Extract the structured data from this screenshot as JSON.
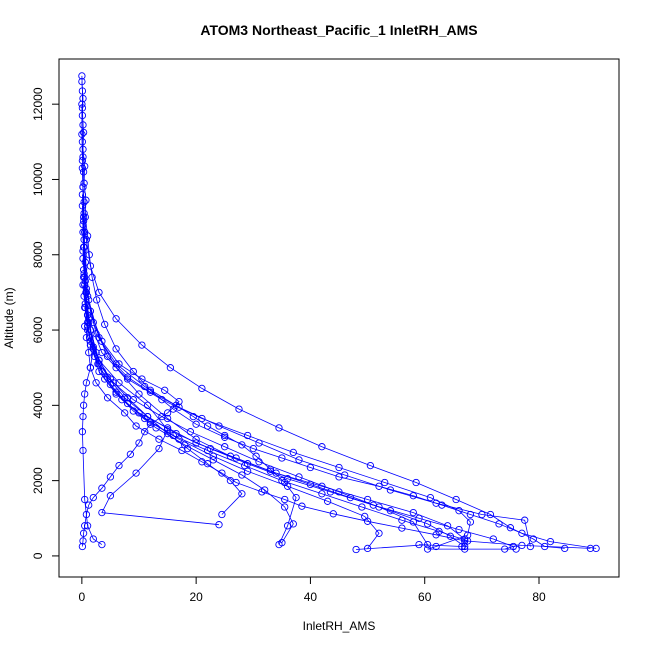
{
  "chart_data": {
    "type": "line",
    "title": "ATOM3 Northeast_Pacific_1 InletRH_AMS",
    "xlabel": "InletRH_AMS",
    "ylabel": "Altitude (m)",
    "xlim": [
      -4,
      94
    ],
    "ylim": [
      -560,
      13200
    ],
    "xticks": [
      0,
      20,
      40,
      60,
      80
    ],
    "yticks": [
      0,
      2000,
      4000,
      6000,
      8000,
      10000,
      12000
    ],
    "grid": false,
    "legend": "none",
    "series_color": "#0000ff",
    "marker": "open-circle",
    "series": [
      {
        "x": [
          0,
          0.1,
          0.1,
          0.2,
          0.1,
          0.2,
          0.3,
          0.2,
          0.4,
          0.3,
          0.5,
          0.4,
          0.6,
          0.5,
          0.8,
          0.6,
          1.0,
          0.8,
          1.2,
          1.5,
          2.5,
          4.5,
          7.5,
          9.5,
          13.5,
          17.5,
          21.0,
          24.5,
          27.0,
          31.5,
          35.5,
          38.5,
          44.0,
          50.0,
          56.0,
          62.0,
          67.0,
          77.0,
          89.0
        ],
        "y": [
          12750,
          12350,
          11900,
          11450,
          11000,
          10600,
          10200,
          9800,
          9400,
          9000,
          8600,
          8200,
          7800,
          7400,
          7000,
          6600,
          6200,
          5800,
          5400,
          5000,
          4600,
          4200,
          3800,
          3450,
          3100,
          2800,
          2500,
          2200,
          1950,
          1700,
          1500,
          1320,
          1120,
          920,
          740,
          560,
          400,
          280,
          200
        ]
      },
      {
        "x": [
          0,
          0.2,
          0.1,
          0.3,
          0.2,
          0.5,
          0.4,
          0.7,
          0.6,
          1.0,
          1.3,
          1.8,
          2.6,
          4.0,
          6.0,
          9.0,
          12.0,
          16.0,
          20.0,
          25.0,
          30.0,
          35.0,
          40.0,
          45.0,
          52.0,
          58.0,
          63.0,
          68.0,
          73.0,
          77.0,
          82.0,
          90.0
        ],
        "y": [
          12600,
          12150,
          11700,
          11250,
          10800,
          10350,
          9900,
          9450,
          9000,
          8500,
          8000,
          7400,
          6800,
          6150,
          5500,
          4900,
          4400,
          3900,
          3500,
          3150,
          2850,
          2600,
          2350,
          2100,
          1850,
          1600,
          1350,
          1100,
          850,
          600,
          380,
          200
        ]
      },
      {
        "x": [
          0.2,
          0.6,
          1.5,
          3.5,
          6.5,
          10.5,
          14.5,
          17.0,
          15.0,
          12.0,
          11.0,
          10.0,
          8.5,
          6.5,
          5.0,
          3.5,
          2.0,
          1.2,
          0.8,
          0.5,
          0.3,
          0.2,
          0.1
        ],
        "y": [
          8800,
          7300,
          6500,
          5700,
          5100,
          4700,
          4400,
          4100,
          3800,
          3500,
          3300,
          3000,
          2700,
          2400,
          2100,
          1800,
          1550,
          1350,
          1100,
          800,
          600,
          400,
          250
        ]
      },
      {
        "x": [
          0.3,
          1.0,
          2.0,
          4.5,
          8.0,
          12.0,
          16.5,
          19.5,
          22.0,
          25.0,
          28.0,
          30.5,
          33.0,
          35.5,
          37.5,
          36.0,
          34.5
        ],
        "y": [
          7600,
          6900,
          6200,
          5300,
          4750,
          4350,
          4000,
          3700,
          3450,
          3200,
          2950,
          2650,
          2300,
          1950,
          1550,
          800,
          300
        ]
      },
      {
        "x": [
          0.1,
          0.4,
          1.2,
          3.0,
          6.0,
          10.0,
          15.0,
          20.0,
          26.0,
          33.0,
          40.0,
          47.0,
          54.0,
          60.5,
          64.5,
          67.0
        ],
        "y": [
          10300,
          8400,
          6800,
          5800,
          5000,
          4300,
          3650,
          3100,
          2650,
          2250,
          1900,
          1550,
          1200,
          850,
          520,
          250
        ]
      },
      {
        "x": [
          0.5,
          1.5,
          3.0,
          5.5,
          9.0,
          14.0,
          19.0,
          25.0,
          31.0,
          38.0,
          45.0,
          52.0,
          58.0,
          60.5,
          48.0
        ],
        "y": [
          6100,
          5600,
          5100,
          4600,
          4150,
          3700,
          3300,
          2900,
          2500,
          2100,
          1700,
          1300,
          900,
          300,
          170
        ]
      },
      {
        "x": [
          0.1,
          0.3,
          0.7,
          1.5,
          3.0,
          5.0,
          8.0,
          11.5,
          15.0,
          18.5,
          22.0,
          26.0,
          28.0,
          24.5
        ],
        "y": [
          9600,
          8200,
          7000,
          6000,
          5200,
          4700,
          4200,
          3700,
          3250,
          2850,
          2450,
          2000,
          1650,
          1100
        ]
      },
      {
        "x": [
          0.2,
          1.0,
          3.5,
          8.0,
          14.0,
          21.0,
          29.0,
          37.0,
          45.0,
          53.0,
          61.0,
          66.0,
          68.0,
          67.5,
          62.0,
          60.5,
          76.0
        ],
        "y": [
          7900,
          6400,
          5400,
          4700,
          4150,
          3650,
          3200,
          2750,
          2350,
          1950,
          1550,
          1200,
          900,
          550,
          250,
          180,
          180
        ]
      },
      {
        "x": [
          0.3,
          0.8,
          2.5,
          6.0,
          11.0,
          17.0,
          24.0,
          31.0,
          38.0,
          46.0,
          54.0,
          62.0,
          70.0,
          77.5,
          78.5
        ],
        "y": [
          8900,
          7100,
          5900,
          5100,
          4500,
          3950,
          3450,
          3000,
          2550,
          2150,
          1750,
          1400,
          1100,
          950,
          250
        ]
      },
      {
        "x": [
          0.2,
          1.0,
          3.0,
          6.5,
          11.5,
          15.0,
          13.5,
          9.5,
          5.0,
          3.5,
          24.0
        ],
        "y": [
          7200,
          6000,
          5200,
          4600,
          4000,
          3350,
          2850,
          2200,
          1600,
          1150,
          830
        ]
      },
      {
        "x": [
          0.4,
          1.2,
          2.0,
          1.5,
          0.8,
          0.5,
          0.3,
          0.2,
          0.1,
          0.2,
          0.5,
          1.0,
          2.0,
          3.5
        ],
        "y": [
          6900,
          6300,
          5500,
          5000,
          4600,
          4300,
          4000,
          3700,
          3300,
          2800,
          1500,
          800,
          450,
          300
        ]
      },
      {
        "x": [
          0.2,
          0.6,
          1.4,
          2.8,
          5.0,
          8.0,
          12.0,
          17.0,
          23.0,
          29.0,
          36.0,
          43.0,
          49.5,
          52.0,
          50.0
        ],
        "y": [
          8100,
          6700,
          5800,
          5100,
          4550,
          4050,
          3550,
          3100,
          2650,
          2250,
          1850,
          1450,
          1050,
          600,
          200
        ]
      },
      {
        "x": [
          0.5,
          1.5,
          3.0,
          6.0,
          10.0,
          15.0,
          20.0,
          27.0,
          34.0,
          42.0,
          50.0,
          58.0,
          64.0,
          67.0,
          66.5,
          59.0
        ],
        "y": [
          6600,
          5700,
          4900,
          4300,
          3800,
          3400,
          3000,
          2600,
          2200,
          1850,
          1500,
          1150,
          800,
          450,
          250,
          300
        ]
      },
      {
        "x": [
          0,
          0,
          0.1,
          0.2,
          0.4,
          0.8,
          1.5,
          3.0,
          6.0,
          10.5,
          15.5,
          21.0,
          27.5,
          34.5,
          42.0,
          50.5,
          58.5,
          65.5,
          71.5,
          75.0,
          79.0,
          81.0,
          84.5
        ],
        "y": [
          12000,
          11200,
          10500,
          9800,
          9100,
          8400,
          7700,
          7000,
          6300,
          5600,
          5000,
          4450,
          3900,
          3400,
          2900,
          2400,
          1950,
          1500,
          1100,
          750,
          450,
          250,
          200
        ]
      },
      {
        "x": [
          0.1,
          0.4,
          1.0,
          2.0,
          3.6,
          6.0,
          9.0,
          13.0,
          18.0,
          23.0,
          28.0,
          32.0,
          35.5,
          37.0,
          35.0
        ],
        "y": [
          9300,
          7500,
          6400,
          5550,
          4900,
          4350,
          3850,
          3400,
          2950,
          2550,
          2150,
          1750,
          1300,
          850,
          350
        ]
      },
      {
        "x": [
          0.2,
          0.5,
          1.2,
          2.5,
          4.5,
          7.5,
          11.5,
          16.5,
          22.5,
          29.0,
          36.0,
          43.5,
          51.0,
          59.0,
          66.0,
          72.0,
          75.5,
          74.0
        ],
        "y": [
          8600,
          7200,
          6200,
          5400,
          4750,
          4200,
          3700,
          3250,
          2850,
          2450,
          2050,
          1700,
          1350,
          1000,
          700,
          450,
          250,
          180
        ]
      },
      {
        "x": [
          0.3,
          1.0,
          2.2,
          4.0,
          7.0,
          11.0,
          16.0,
          22.0,
          28.5,
          35.0,
          42.0,
          49.0,
          56.0,
          62.5,
          67.5,
          67.0
        ],
        "y": [
          7400,
          6100,
          5300,
          4700,
          4150,
          3650,
          3200,
          2800,
          2400,
          2000,
          1650,
          1300,
          950,
          650,
          400,
          180
        ]
      }
    ]
  }
}
